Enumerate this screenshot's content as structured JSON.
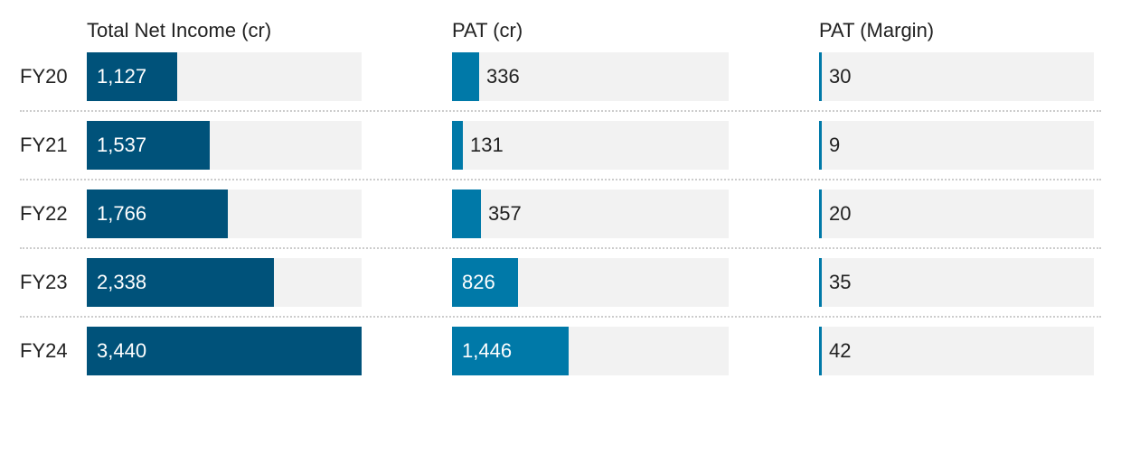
{
  "chart_data": {
    "type": "table",
    "categories": [
      "FY20",
      "FY21",
      "FY22",
      "FY23",
      "FY24"
    ],
    "series": [
      {
        "name": "Total Net Income (cr)",
        "values": [
          1127,
          1537,
          1766,
          2338,
          3440
        ],
        "labels": [
          "1,127",
          "1,537",
          "1,766",
          "2,338",
          "3,440"
        ],
        "color": "#00527a",
        "max": 3440
      },
      {
        "name": "PAT (cr)",
        "values": [
          336,
          131,
          357,
          826,
          1446
        ],
        "labels": [
          "336",
          "131",
          "357",
          "826",
          "1,446"
        ],
        "color": "#0079a8",
        "max": 3440
      },
      {
        "name": "PAT (Margin)",
        "values": [
          30,
          9,
          20,
          35,
          42
        ],
        "labels": [
          "30",
          "9",
          "20",
          "35",
          "42"
        ],
        "color": "#0079a8",
        "max": null
      }
    ],
    "grid": false,
    "legend": "none"
  }
}
